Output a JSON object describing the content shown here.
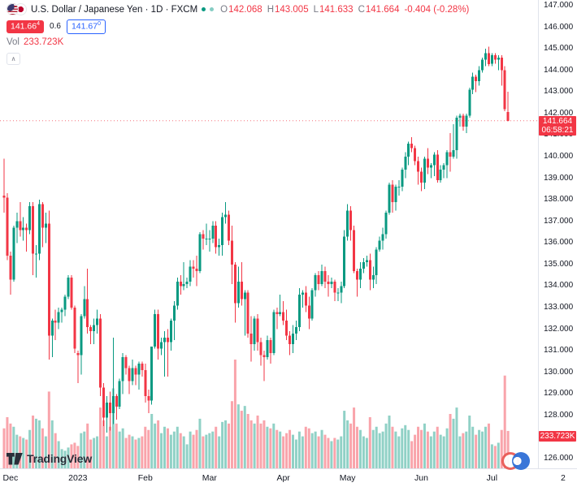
{
  "header": {
    "symbol_title": "U.S. Dollar / Japanese Yen · 1D · FXCM",
    "ohlc": {
      "o_label": "O",
      "o_value": "142.068",
      "h_label": "H",
      "h_value": "143.005",
      "l_label": "L",
      "l_value": "141.633",
      "c_label": "C",
      "c_value": "141.664",
      "change": "-0.404 (-0.28%)"
    },
    "bid": "141.66",
    "bid_sup": "4",
    "spread": "0.6",
    "ask": "141.67",
    "ask_sup": "0",
    "vol_label": "Vol",
    "vol_value": "233.723K",
    "collapse_icon": "∧"
  },
  "price_axis": {
    "labels": [
      "147.000",
      "146.000",
      "145.000",
      "144.000",
      "143.000",
      "142.000",
      "141.000",
      "140.000",
      "139.000",
      "138.000",
      "137.000",
      "136.000",
      "135.000",
      "134.000",
      "133.000",
      "132.000",
      "131.000",
      "130.000",
      "129.000",
      "128.000",
      "127.000",
      "126.000"
    ],
    "last_price": "141.664",
    "countdown": "06:58:21",
    "vol_badge": "233.723K"
  },
  "time_axis": {
    "labels": [
      {
        "text": "Dec",
        "index": 2
      },
      {
        "text": "2023",
        "index": 23
      },
      {
        "text": "Feb",
        "index": 44
      },
      {
        "text": "Mar",
        "index": 64
      },
      {
        "text": "Apr",
        "index": 87
      },
      {
        "text": "May",
        "index": 107
      },
      {
        "text": "Jun",
        "index": 130
      },
      {
        "text": "Jul",
        "index": 152
      }
    ],
    "partial_label": "2"
  },
  "watermark": "TradingView",
  "colors": {
    "up": "#089981",
    "down": "#F23645",
    "vol_up": "rgba(8,153,129,0.45)",
    "vol_down": "rgba(242,54,69,0.45)",
    "last_price_line": "rgba(242,54,69,0.7)",
    "bid_badge_bg": "#F23645",
    "ask_badge_color": "#2962FF",
    "axis_text": "#131722",
    "muted_text": "#787B86",
    "border": "#E0E3EB",
    "status_dot_1": "#089981",
    "status_dot_2": "#85ccc3"
  },
  "chart_data": {
    "type": "candlestick",
    "symbol": "U.S. Dollar / Japanese Yen",
    "interval": "1D",
    "source": "FXCM",
    "price_axis_range": [
      126.0,
      147.3
    ],
    "price_step": 1.0,
    "volume_unit": "K",
    "grid": false,
    "last": {
      "open": 142.068,
      "high": 143.005,
      "low": 141.633,
      "close": 141.664,
      "change": -0.404,
      "change_pct": -0.28,
      "volume_k": 233.723
    },
    "columns": [
      "open",
      "high",
      "low",
      "close",
      "volume_k"
    ],
    "candles": [
      [
        138.2,
        139.9,
        137.4,
        138.1,
        250
      ],
      [
        138.1,
        138.3,
        135.2,
        135.4,
        320
      ],
      [
        135.4,
        135.6,
        133.6,
        134.3,
        280
      ],
      [
        134.3,
        136.8,
        134.2,
        136.7,
        260
      ],
      [
        136.7,
        137.4,
        136.0,
        137.0,
        210
      ],
      [
        137.0,
        137.9,
        136.3,
        136.6,
        200
      ],
      [
        136.6,
        137.2,
        136.1,
        136.7,
        190
      ],
      [
        136.7,
        136.9,
        135.6,
        136.6,
        180
      ],
      [
        136.6,
        137.9,
        136.4,
        137.7,
        240
      ],
      [
        137.7,
        137.9,
        134.5,
        135.5,
        330
      ],
      [
        135.5,
        135.9,
        134.4,
        135.5,
        310
      ],
      [
        135.5,
        138.0,
        135.2,
        137.8,
        300
      ],
      [
        137.8,
        137.9,
        135.8,
        136.7,
        250
      ],
      [
        136.7,
        137.4,
        136.0,
        136.9,
        200
      ],
      [
        136.9,
        137.5,
        130.6,
        131.7,
        480
      ],
      [
        131.7,
        132.5,
        130.7,
        132.4,
        300
      ],
      [
        132.4,
        132.9,
        131.5,
        132.3,
        220
      ],
      [
        132.3,
        133.0,
        132.0,
        132.8,
        170
      ],
      [
        132.8,
        133.0,
        132.3,
        132.9,
        120
      ],
      [
        132.9,
        133.6,
        132.6,
        133.5,
        110
      ],
      [
        133.5,
        134.5,
        133.4,
        134.4,
        130
      ],
      [
        134.4,
        134.5,
        132.9,
        133.0,
        150
      ],
      [
        133.0,
        133.1,
        130.9,
        131.1,
        160
      ],
      [
        130.9,
        131.0,
        129.5,
        130.8,
        140
      ],
      [
        130.8,
        132.7,
        129.9,
        132.6,
        220
      ],
      [
        132.6,
        134.0,
        132.5,
        133.4,
        230
      ],
      [
        133.4,
        134.8,
        131.8,
        132.1,
        280
      ],
      [
        132.1,
        132.2,
        131.3,
        131.9,
        180
      ],
      [
        131.9,
        132.5,
        131.3,
        132.2,
        190
      ],
      [
        132.2,
        132.9,
        131.8,
        132.5,
        200
      ],
      [
        132.5,
        132.7,
        128.9,
        129.3,
        380
      ],
      [
        129.3,
        129.5,
        127.5,
        127.9,
        300
      ],
      [
        127.9,
        128.9,
        127.2,
        128.6,
        200
      ],
      [
        128.6,
        129.1,
        127.3,
        128.1,
        260
      ],
      [
        128.1,
        131.6,
        127.6,
        128.9,
        500
      ],
      [
        128.9,
        129.0,
        127.8,
        128.4,
        280
      ],
      [
        128.4,
        129.7,
        128.3,
        129.6,
        230
      ],
      [
        129.6,
        130.9,
        129.0,
        130.7,
        250
      ],
      [
        130.7,
        130.8,
        129.9,
        130.2,
        190
      ],
      [
        130.2,
        130.3,
        129.0,
        129.6,
        210
      ],
      [
        129.6,
        130.6,
        129.4,
        130.2,
        200
      ],
      [
        130.2,
        130.3,
        129.4,
        129.9,
        180
      ],
      [
        129.9,
        130.5,
        129.2,
        130.4,
        190
      ],
      [
        130.4,
        130.5,
        129.8,
        130.1,
        200
      ],
      [
        130.1,
        130.4,
        128.6,
        128.9,
        260
      ],
      [
        128.9,
        129.2,
        128.1,
        128.7,
        240
      ],
      [
        128.7,
        131.2,
        128.5,
        131.2,
        340
      ],
      [
        131.2,
        132.9,
        131.1,
        132.7,
        280
      ],
      [
        132.7,
        132.9,
        130.6,
        131.1,
        300
      ],
      [
        131.1,
        131.6,
        130.8,
        131.4,
        220
      ],
      [
        131.4,
        131.9,
        129.8,
        131.6,
        260
      ],
      [
        131.6,
        132.0,
        129.8,
        131.4,
        250
      ],
      [
        131.4,
        132.5,
        131.0,
        132.4,
        210
      ],
      [
        132.4,
        133.3,
        131.5,
        133.1,
        230
      ],
      [
        133.1,
        134.4,
        132.9,
        134.2,
        260
      ],
      [
        134.2,
        134.5,
        133.6,
        134.0,
        220
      ],
      [
        134.0,
        135.1,
        133.8,
        134.1,
        200
      ],
      [
        134.1,
        134.4,
        133.9,
        134.2,
        150
      ],
      [
        134.2,
        135.2,
        134.0,
        134.9,
        230
      ],
      [
        134.9,
        135.2,
        134.4,
        134.8,
        210
      ],
      [
        134.8,
        135.4,
        134.0,
        134.7,
        240
      ],
      [
        134.7,
        136.5,
        134.6,
        136.4,
        310
      ],
      [
        136.4,
        136.6,
        135.7,
        136.2,
        200
      ],
      [
        136.2,
        136.9,
        135.9,
        136.2,
        210
      ],
      [
        136.2,
        136.6,
        135.6,
        136.2,
        220
      ],
      [
        136.2,
        137.0,
        136.0,
        136.8,
        230
      ],
      [
        136.8,
        137.0,
        135.5,
        135.8,
        260
      ],
      [
        135.8,
        136.2,
        135.4,
        135.9,
        200
      ],
      [
        135.9,
        137.4,
        135.4,
        137.2,
        290
      ],
      [
        137.2,
        137.9,
        136.9,
        137.3,
        300
      ],
      [
        137.3,
        137.5,
        135.9,
        136.1,
        280
      ],
      [
        136.1,
        136.8,
        134.1,
        135.0,
        420
      ],
      [
        135.0,
        135.1,
        132.3,
        133.2,
        680
      ],
      [
        133.2,
        134.9,
        133.0,
        134.2,
        400
      ],
      [
        134.2,
        135.1,
        133.1,
        133.4,
        360
      ],
      [
        133.4,
        133.8,
        131.7,
        133.7,
        390
      ],
      [
        133.7,
        133.8,
        131.6,
        131.8,
        340
      ],
      [
        131.8,
        132.6,
        130.5,
        131.3,
        300
      ],
      [
        131.3,
        132.6,
        131.0,
        132.5,
        280
      ],
      [
        132.5,
        132.7,
        131.0,
        131.4,
        330
      ],
      [
        131.4,
        131.6,
        130.3,
        130.8,
        280
      ],
      [
        130.8,
        131.0,
        129.6,
        130.7,
        300
      ],
      [
        130.7,
        131.7,
        130.6,
        131.5,
        260
      ],
      [
        131.5,
        131.6,
        130.4,
        130.9,
        250
      ],
      [
        130.9,
        132.9,
        130.8,
        132.8,
        280
      ],
      [
        132.8,
        133.0,
        132.0,
        132.7,
        240
      ],
      [
        132.7,
        133.6,
        132.6,
        132.8,
        230
      ],
      [
        132.8,
        133.3,
        132.2,
        132.4,
        200
      ],
      [
        132.4,
        132.9,
        131.5,
        131.7,
        220
      ],
      [
        131.7,
        131.9,
        130.8,
        131.3,
        240
      ],
      [
        131.3,
        132.2,
        130.9,
        131.8,
        210
      ],
      [
        131.8,
        132.4,
        131.5,
        132.1,
        180
      ],
      [
        132.1,
        133.9,
        131.9,
        133.6,
        230
      ],
      [
        133.6,
        133.8,
        133.0,
        133.7,
        200
      ],
      [
        133.7,
        134.0,
        132.8,
        133.1,
        260
      ],
      [
        133.1,
        133.5,
        132.0,
        132.5,
        250
      ],
      [
        132.5,
        133.9,
        132.4,
        133.8,
        220
      ],
      [
        133.8,
        134.6,
        133.5,
        134.5,
        230
      ],
      [
        134.5,
        134.7,
        133.8,
        134.1,
        200
      ],
      [
        134.1,
        135.0,
        134.0,
        134.7,
        240
      ],
      [
        134.7,
        134.9,
        133.9,
        134.2,
        210
      ],
      [
        134.2,
        134.5,
        133.5,
        134.1,
        190
      ],
      [
        134.1,
        134.4,
        133.9,
        134.2,
        170
      ],
      [
        134.2,
        134.3,
        133.3,
        133.7,
        190
      ],
      [
        133.7,
        133.9,
        133.3,
        133.7,
        180
      ],
      [
        133.7,
        134.2,
        133.2,
        134.0,
        200
      ],
      [
        134.0,
        136.6,
        133.9,
        136.3,
        360
      ],
      [
        136.3,
        137.8,
        136.1,
        137.5,
        300
      ],
      [
        137.5,
        137.7,
        136.1,
        136.6,
        280
      ],
      [
        136.6,
        136.8,
        134.6,
        134.7,
        380
      ],
      [
        134.7,
        134.8,
        133.5,
        134.3,
        260
      ],
      [
        134.3,
        135.1,
        133.9,
        134.8,
        240
      ],
      [
        134.8,
        135.3,
        134.6,
        135.1,
        200
      ],
      [
        135.1,
        135.4,
        134.9,
        135.2,
        190
      ],
      [
        135.2,
        135.5,
        133.8,
        134.3,
        320
      ],
      [
        134.3,
        134.9,
        133.9,
        134.5,
        240
      ],
      [
        134.5,
        135.8,
        134.1,
        135.7,
        260
      ],
      [
        135.7,
        136.3,
        135.6,
        136.1,
        220
      ],
      [
        136.1,
        136.7,
        135.7,
        136.4,
        230
      ],
      [
        136.4,
        137.5,
        136.2,
        137.4,
        280
      ],
      [
        137.4,
        138.8,
        137.3,
        138.7,
        330
      ],
      [
        138.7,
        138.9,
        137.4,
        137.9,
        260
      ],
      [
        137.9,
        138.7,
        137.5,
        138.6,
        230
      ],
      [
        138.6,
        138.9,
        138.2,
        138.6,
        200
      ],
      [
        138.6,
        139.5,
        138.4,
        139.4,
        250
      ],
      [
        139.4,
        140.2,
        139.0,
        140.0,
        270
      ],
      [
        140.0,
        140.7,
        139.6,
        140.6,
        240
      ],
      [
        140.6,
        140.9,
        140.2,
        140.4,
        170
      ],
      [
        140.4,
        140.5,
        139.6,
        139.8,
        210
      ],
      [
        139.8,
        140.0,
        138.7,
        139.3,
        260
      ],
      [
        139.3,
        139.5,
        138.4,
        138.8,
        240
      ],
      [
        138.8,
        140.0,
        138.5,
        139.9,
        280
      ],
      [
        139.9,
        140.4,
        139.2,
        139.5,
        230
      ],
      [
        139.5,
        139.7,
        139.0,
        139.6,
        200
      ],
      [
        139.6,
        140.2,
        139.1,
        140.1,
        230
      ],
      [
        140.1,
        140.3,
        138.8,
        138.9,
        260
      ],
      [
        138.9,
        139.6,
        138.8,
        139.4,
        210
      ],
      [
        139.4,
        139.7,
        139.0,
        139.6,
        200
      ],
      [
        139.6,
        140.3,
        139.0,
        140.2,
        250
      ],
      [
        140.2,
        141.1,
        139.3,
        140.0,
        340
      ],
      [
        140.0,
        141.5,
        139.9,
        140.3,
        310
      ],
      [
        140.3,
        141.9,
        139.9,
        141.8,
        380
      ],
      [
        141.8,
        142.0,
        141.4,
        141.9,
        200
      ],
      [
        141.9,
        142.0,
        141.2,
        141.4,
        220
      ],
      [
        141.4,
        142.0,
        141.1,
        141.9,
        230
      ],
      [
        141.9,
        143.2,
        141.8,
        143.1,
        330
      ],
      [
        143.1,
        143.9,
        142.9,
        143.7,
        260
      ],
      [
        143.7,
        143.8,
        143.0,
        143.5,
        210
      ],
      [
        143.5,
        144.2,
        143.3,
        144.0,
        240
      ],
      [
        144.0,
        144.6,
        143.9,
        144.5,
        230
      ],
      [
        144.5,
        145.0,
        144.2,
        144.8,
        260
      ],
      [
        144.8,
        145.1,
        144.2,
        144.3,
        280
      ],
      [
        144.3,
        144.8,
        144.2,
        144.7,
        150
      ],
      [
        144.7,
        144.8,
        144.3,
        144.5,
        140
      ],
      [
        144.5,
        144.7,
        144.0,
        144.6,
        160
      ],
      [
        144.6,
        144.7,
        143.3,
        144.0,
        240
      ],
      [
        144.0,
        144.2,
        142.1,
        142.2,
        580
      ],
      [
        142.068,
        143.005,
        141.633,
        141.664,
        233.723
      ]
    ]
  }
}
